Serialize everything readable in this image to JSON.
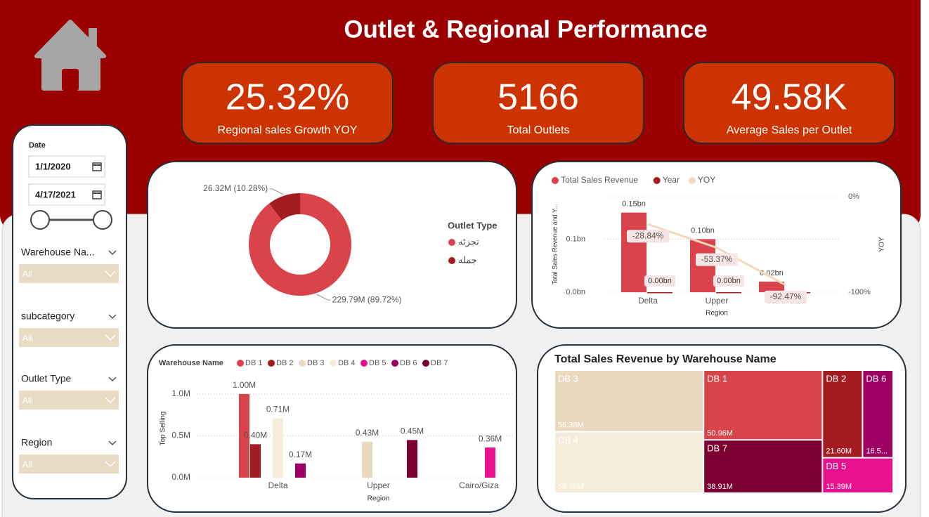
{
  "header": {
    "title": "Outlet & Regional Performance"
  },
  "kpis": [
    {
      "value": "25.32%",
      "label": "Regional sales Growth YOY"
    },
    {
      "value": "5166",
      "label": "Total Outlets"
    },
    {
      "value": "49.58K",
      "label": "Average Sales per Outlet"
    }
  ],
  "filters": {
    "date": {
      "label": "Date",
      "start": "1/1/2020",
      "end": "4/17/2021"
    },
    "slicers": [
      {
        "label": "Warehouse Na...",
        "value": "All"
      },
      {
        "label": "subcategory",
        "value": "All"
      },
      {
        "label": "Outlet Type",
        "value": "All"
      },
      {
        "label": "Region",
        "value": "All"
      }
    ]
  },
  "chart_data": [
    {
      "type": "donut",
      "legend_title": "Outlet Type",
      "categories": [
        "تجزئه",
        "جمله"
      ],
      "values": [
        229.79,
        26.32
      ],
      "value_labels": [
        "229.79M (89.72%)",
        "26.32M (10.28%)"
      ],
      "colors": [
        "#d9434a",
        "#a31c1f"
      ]
    },
    {
      "type": "combo",
      "categories": [
        "Delta",
        "Upper",
        "Cairo/Giza"
      ],
      "xlabel": "Region",
      "ylabel": "Total Sales Revenue and Y...",
      "y2label": "YOY",
      "ylim": [
        0,
        0.18
      ],
      "yticks": [
        {
          "value": 0,
          "label": "0.0bn"
        },
        {
          "value": 0.1,
          "label": "0.1bn"
        }
      ],
      "y2lim": [
        -100,
        0
      ],
      "y2ticks": [
        {
          "value": 0,
          "label": "0%"
        },
        {
          "value": -100,
          "label": "-100%"
        }
      ],
      "series": [
        {
          "name": "Total Sales Revenue",
          "kind": "bar",
          "color": "#d9434a",
          "values": [
            0.15,
            0.1,
            0.02
          ],
          "value_labels": [
            "0.15bn",
            "0.10bn",
            "0.02bn"
          ]
        },
        {
          "name": "Year",
          "kind": "bar",
          "color": "#a31c1f",
          "values": [
            0,
            0,
            0
          ],
          "value_labels": [
            "0.00bn",
            "0.00bn",
            null
          ]
        },
        {
          "name": "YOY",
          "kind": "line",
          "axis": "y2",
          "color": "#f0d9bf",
          "values": [
            -28.84,
            -53.37,
            -92.47
          ],
          "value_labels": [
            "-28.84%",
            "-53.37%",
            "-92.47%"
          ]
        }
      ]
    },
    {
      "type": "bar",
      "legend_title": "Warehouse Name",
      "xlabel": "Region",
      "ylabel": "Top Selling",
      "categories": [
        "Delta",
        "Upper",
        "Cairo/Giza"
      ],
      "ylim": [
        0,
        1.1
      ],
      "yticks": [
        {
          "value": 0,
          "label": "0.0M"
        },
        {
          "value": 0.5,
          "label": "0.5M"
        },
        {
          "value": 1,
          "label": "1.0M"
        }
      ],
      "grid": true,
      "series": [
        {
          "name": "DB 1",
          "color": "#d9434a",
          "values": [
            1.0,
            null,
            null
          ],
          "value_labels": [
            "1.00M",
            null,
            null
          ]
        },
        {
          "name": "DB 2",
          "color": "#a31c1f",
          "values": [
            0.4,
            null,
            null
          ],
          "value_labels": [
            "0.40M",
            null,
            null
          ]
        },
        {
          "name": "DB 3",
          "color": "#e8d9bf",
          "values": [
            null,
            0.43,
            null
          ],
          "value_labels": [
            null,
            "0.43M",
            null
          ]
        },
        {
          "name": "DB 4",
          "color": "#f5ecd9",
          "values": [
            0.71,
            null,
            null
          ],
          "value_labels": [
            "0.71M",
            null,
            null
          ]
        },
        {
          "name": "DB 5",
          "color": "#e8108f",
          "values": [
            null,
            null,
            0.36
          ],
          "value_labels": [
            null,
            null,
            "0.36M"
          ]
        },
        {
          "name": "DB 6",
          "color": "#9c0062",
          "values": [
            0.17,
            null,
            null
          ],
          "value_labels": [
            "0.17M",
            null,
            null
          ]
        },
        {
          "name": "DB 7",
          "color": "#7d0033",
          "values": [
            null,
            0.45,
            null
          ],
          "value_labels": [
            null,
            "0.45M",
            null
          ]
        }
      ]
    },
    {
      "type": "treemap",
      "title": "Total Sales Revenue by Warehouse Name",
      "categories": [
        "DB 3",
        "DB 4",
        "DB 1",
        "DB 7",
        "DB 2",
        "DB 6",
        "DB 5"
      ],
      "values": [
        56.38,
        56.36,
        50.96,
        38.91,
        21.6,
        16.5,
        15.39
      ],
      "value_labels": [
        "56.38M",
        "56.36M",
        "50.96M",
        "38.91M",
        "21.60M",
        "16.5...",
        "15.39M"
      ],
      "colors": [
        "#e8d9bf",
        "#f5ecd9",
        "#d9434a",
        "#7d0033",
        "#a31c1f",
        "#9c0062",
        "#e8108f"
      ]
    }
  ]
}
